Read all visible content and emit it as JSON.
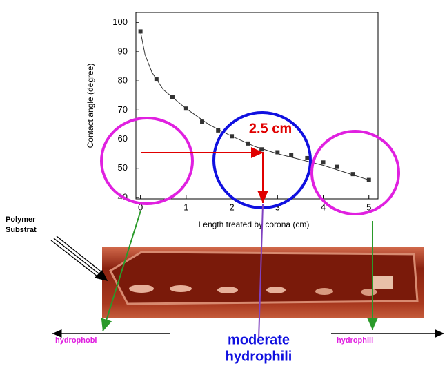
{
  "chart_data": {
    "type": "scatter",
    "xlabel": "Length treated by corona (cm)",
    "ylabel": "Contact angle (degree)",
    "xlim": [
      -0.1,
      5.2
    ],
    "ylim": [
      39.5,
      103.5
    ],
    "xticks": [
      0,
      1,
      2,
      3,
      4,
      5
    ],
    "yticks": [
      40,
      50,
      60,
      70,
      80,
      90,
      100
    ],
    "series": [
      {
        "color": "#333333",
        "marker": "square",
        "x": [
          0,
          0.35,
          0.7,
          1.0,
          1.35,
          1.7,
          2.0,
          2.35,
          2.65,
          3.0,
          3.3,
          3.65,
          4.0,
          4.3,
          4.65,
          5.0
        ],
        "values": [
          97,
          80.5,
          74.5,
          70.5,
          66,
          63,
          61,
          58.5,
          56.5,
          55.5,
          54.5,
          53.5,
          52,
          50.5,
          48,
          46
        ]
      },
      {
        "color": "#333333",
        "marker": "line",
        "x": [
          0,
          0.1,
          0.25,
          0.5,
          1,
          1.5,
          2,
          2.5,
          3,
          3.5,
          4,
          4.5,
          5
        ],
        "values": [
          97,
          89,
          83,
          77,
          70.5,
          65,
          61,
          57.5,
          55,
          53,
          51,
          48.5,
          46
        ]
      }
    ],
    "annotations": {
      "marker_label": "2.5 cm",
      "substrate": [
        "Polymer",
        "Substrat"
      ],
      "left_label": "hydrophobi",
      "middle_label": [
        "moderate",
        "hydrophili"
      ],
      "right_label": "hydrophili"
    }
  }
}
